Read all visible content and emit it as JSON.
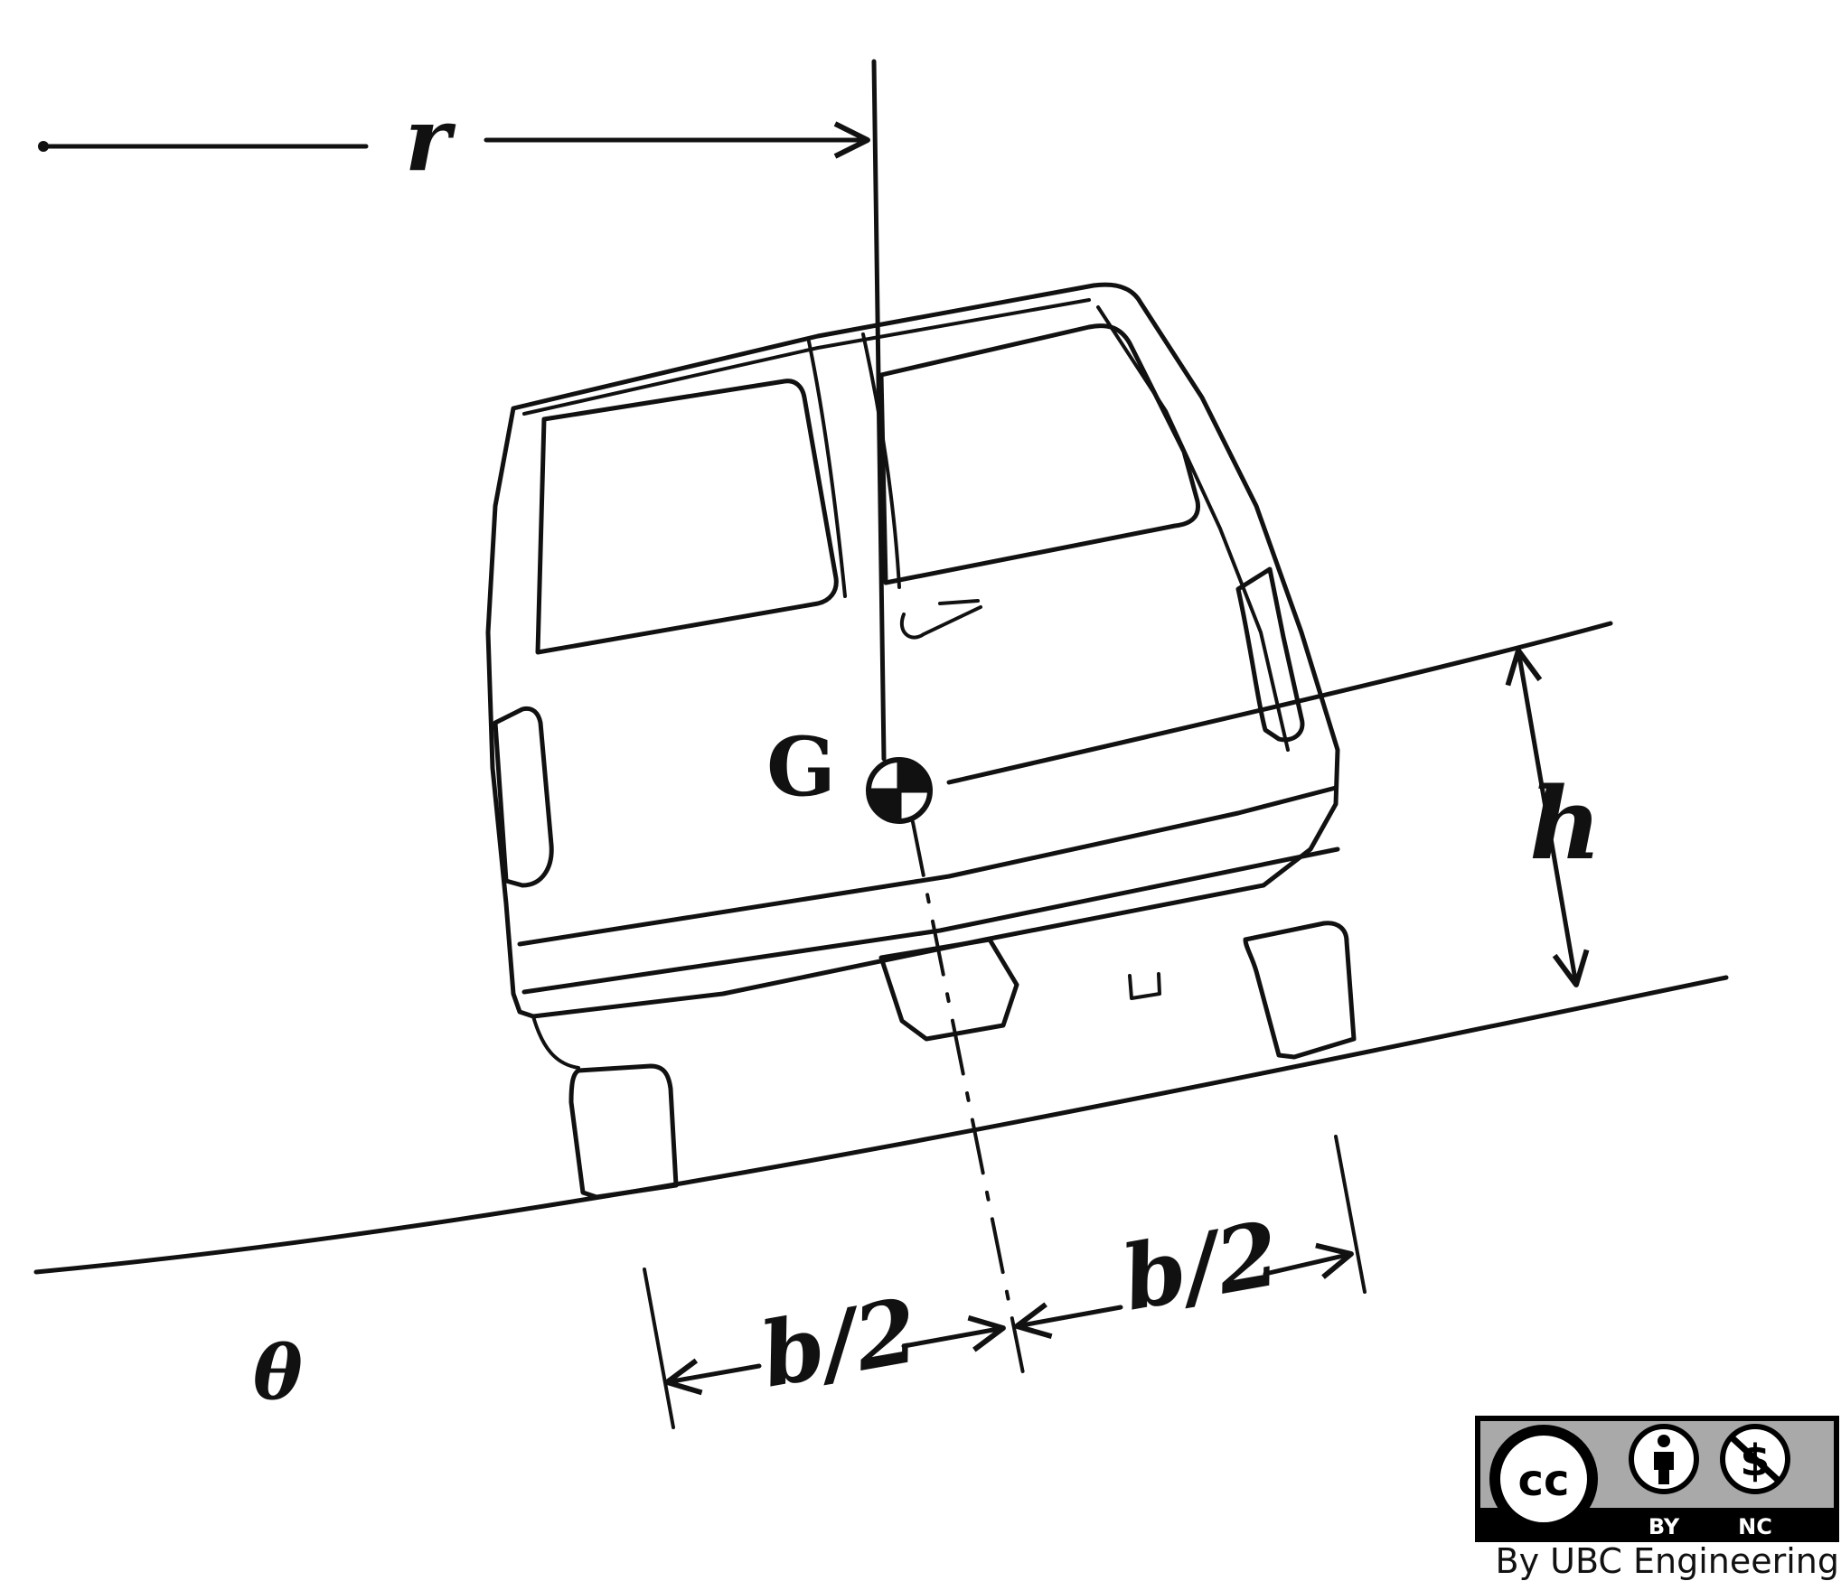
{
  "labels": {
    "radius": "r",
    "center_of_gravity": "G",
    "height": "h",
    "half_track_left": "b/2",
    "half_track_right": "b/2",
    "angle": "θ"
  },
  "license": {
    "cc_symbol": "cc",
    "by": "BY",
    "nc": "NC",
    "credit": "By UBC Engineering"
  },
  "colors": {
    "ink": "#111111",
    "badge_gray": "#a9a9a9",
    "badge_black": "#000000"
  }
}
